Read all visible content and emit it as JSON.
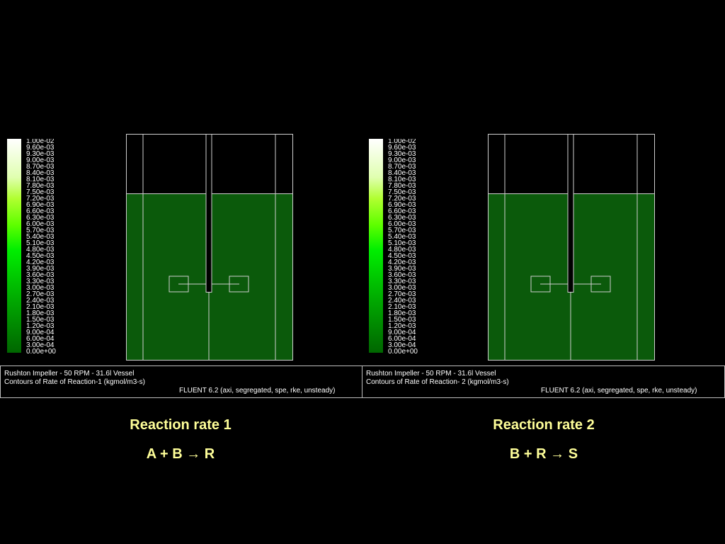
{
  "legend_ticks": [
    "1.00e-02",
    "9.60e-03",
    "9.30e-03",
    "9.00e-03",
    "8.70e-03",
    "8.40e-03",
    "8.10e-03",
    "7.80e-03",
    "7.50e-03",
    "7.20e-03",
    "6.90e-03",
    "6.60e-03",
    "6.30e-03",
    "6.00e-03",
    "5.70e-03",
    "5.40e-03",
    "5.10e-03",
    "4.80e-03",
    "4.50e-03",
    "4.20e-03",
    "3.90e-03",
    "3.60e-03",
    "3.30e-03",
    "3.00e-03",
    "2.70e-03",
    "2.40e-03",
    "2.10e-03",
    "1.80e-03",
    "1.50e-03",
    "1.20e-03",
    "9.00e-04",
    "6.00e-04",
    "3.00e-04",
    "0.00e+00"
  ],
  "colors": {
    "background": "#000000",
    "fluid": "#0b5a0b",
    "caption": "#ffff99",
    "scale_top": "#ffffff",
    "scale_mid": "#00e600",
    "scale_bottom": "#006600"
  },
  "panels": [
    {
      "info_line1": "Rushton Impeller - 50 RPM - 31.6l Vessel",
      "info_line2": "Contours of Rate of Reaction-1 (kgmol/m3-s)",
      "info_line3": "FLUENT 6.2 (axi, segregated, spe, rke, unsteady)",
      "caption_title": "Reaction rate 1",
      "caption_equation": "A + B → R"
    },
    {
      "info_line1": "Rushton Impeller - 50 RPM - 31.6l Vessel",
      "info_line2": "Contours of Rate of Reaction- 2 (kgmol/m3-s)",
      "info_line3": "FLUENT 6.2 (axi, segregated, spe, rke, unsteady)",
      "caption_title": "Reaction rate 2",
      "caption_equation": "B + R → S"
    }
  ]
}
